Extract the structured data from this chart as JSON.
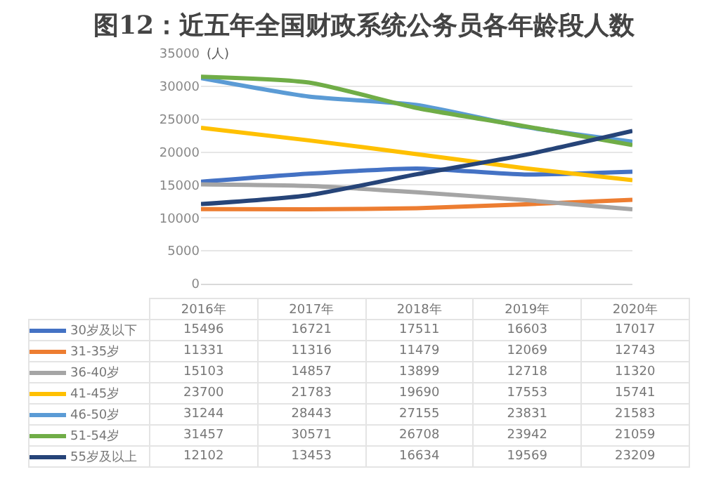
{
  "chart_data": {
    "type": "line",
    "title": "图12：近五年全国财政系统公务员各年龄段人数",
    "ylabel": "(人)",
    "categories": [
      "2016年",
      "2017年",
      "2018年",
      "2019年",
      "2020年"
    ],
    "series": [
      {
        "name": "30岁及以下",
        "color": "#4472c4",
        "values": [
          15496,
          16721,
          17511,
          16603,
          17017
        ]
      },
      {
        "name": "31-35岁",
        "color": "#ed7d31",
        "values": [
          11331,
          11316,
          11479,
          12069,
          12743
        ]
      },
      {
        "name": "36-40岁",
        "color": "#a5a5a5",
        "values": [
          15103,
          14857,
          13899,
          12718,
          11320
        ]
      },
      {
        "name": "41-45岁",
        "color": "#ffc000",
        "values": [
          23700,
          21783,
          19690,
          17553,
          15741
        ]
      },
      {
        "name": "46-50岁",
        "color": "#5b9bd5",
        "values": [
          31244,
          28443,
          27155,
          23831,
          21583
        ]
      },
      {
        "name": "51-54岁",
        "color": "#70ad47",
        "values": [
          31457,
          30571,
          26708,
          23942,
          21059
        ]
      },
      {
        "name": "55岁及以上",
        "color": "#264478",
        "values": [
          12102,
          13453,
          16634,
          19569,
          23209
        ]
      }
    ],
    "ylim": [
      0,
      35000
    ],
    "yticks": [
      0,
      5000,
      10000,
      15000,
      20000,
      25000,
      30000,
      35000
    ],
    "grid": "y",
    "legend": "bottom",
    "data_labels": true,
    "tick_labels": "y",
    "marker": "none",
    "line_style": "solid"
  }
}
